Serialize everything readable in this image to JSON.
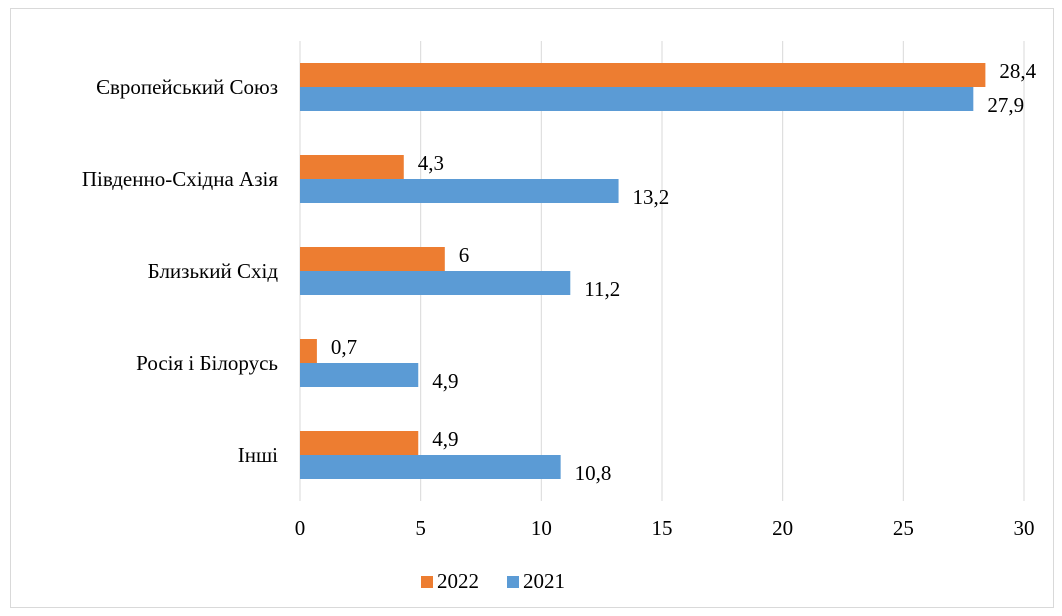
{
  "chart_data": {
    "type": "bar",
    "orientation": "horizontal",
    "categories": [
      "Європейський Союз",
      "Південно-Східна Азія",
      "Близький Схід",
      "Росія і Білорусь",
      "Інші"
    ],
    "series": [
      {
        "name": "2022",
        "color": "#ed7d31",
        "values": [
          28.4,
          4.3,
          6,
          0.7,
          4.9
        ],
        "labels": [
          "28,4",
          "4,3",
          "6",
          "0,7",
          "4,9"
        ]
      },
      {
        "name": "2021",
        "color": "#5b9bd5",
        "values": [
          27.9,
          13.2,
          11.2,
          4.9,
          10.8
        ],
        "labels": [
          "27,9",
          "13,2",
          "11,2",
          "4,9",
          "10,8"
        ]
      }
    ],
    "xlim": [
      0,
      30
    ],
    "ticks": [
      "0",
      "5",
      "10",
      "15",
      "20",
      "25",
      "30"
    ],
    "grid": true,
    "legend_position": "bottom"
  }
}
